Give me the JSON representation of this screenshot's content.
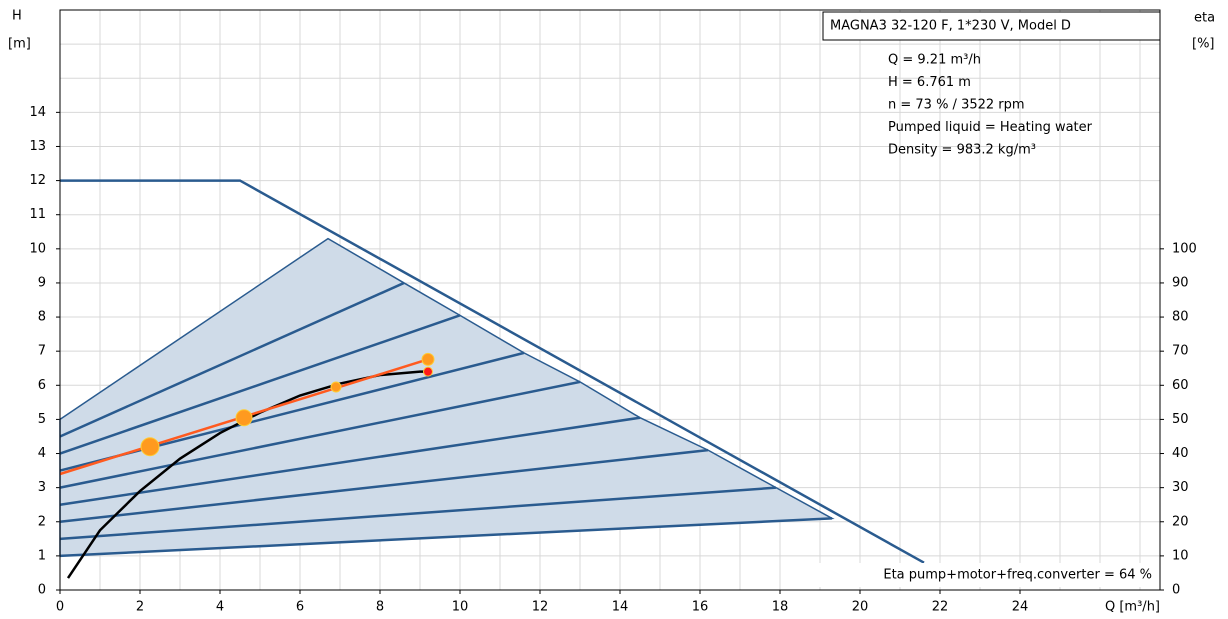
{
  "chart_data": {
    "type": "line",
    "title": "MAGNA3 32-120 F, 1*230 V, Model D",
    "info": [
      "Q = 9.21 m³/h",
      "H = 6.761 m",
      "n = 73 % / 3522 rpm",
      "Pumped liquid = Heating water",
      "Density = 983.2 kg/m³"
    ],
    "footnote": "Eta pump+motor+freq.converter = 64 %",
    "ylabel": "H",
    "yunit": "[m]",
    "y2label": "eta",
    "y2unit": "[%]",
    "xlabel": "Q [m³/h]",
    "xlim": [
      0,
      27.5
    ],
    "xticks": [
      0,
      2,
      4,
      6,
      8,
      10,
      12,
      14,
      16,
      18,
      20,
      22,
      24
    ],
    "xminorticks": [
      1,
      3,
      5,
      7,
      9,
      11,
      13,
      15,
      17,
      19,
      21,
      23,
      25,
      26,
      27
    ],
    "ylim": [
      0,
      17
    ],
    "yticks": [
      0,
      1,
      2,
      3,
      4,
      5,
      6,
      7,
      8,
      9,
      10,
      11,
      12,
      13,
      14
    ],
    "yminorticks": [
      15,
      16
    ],
    "y2lim": [
      0,
      170
    ],
    "y2ticks": [
      0,
      10,
      20,
      30,
      40,
      50,
      60,
      70,
      80,
      90,
      100
    ],
    "grid": true,
    "series": [
      {
        "kind": "area",
        "color": "#2a5b8f",
        "fill": "#cfdbe8",
        "x": [
          0,
          6.7,
          8.6,
          10,
          11.6,
          13,
          14.5,
          16.2,
          17.9,
          19.3,
          0
        ],
        "values": [
          5,
          10.3,
          9.0,
          8.05,
          6.95,
          6.1,
          5.05,
          4.1,
          3.0,
          2.1,
          1
        ]
      },
      {
        "kind": "line",
        "color": "#2a5b8f",
        "x": [
          0,
          4.5,
          21.6
        ],
        "values": [
          12,
          12,
          0.8
        ]
      },
      {
        "kind": "line",
        "color": "#2a5b8f",
        "x": [
          0,
          8.6
        ],
        "values": [
          4.5,
          9.0
        ]
      },
      {
        "kind": "line",
        "color": "#2a5b8f",
        "x": [
          0,
          10
        ],
        "values": [
          4,
          8.05
        ]
      },
      {
        "kind": "line",
        "color": "#2a5b8f",
        "x": [
          0,
          11.6
        ],
        "values": [
          3.5,
          6.95
        ]
      },
      {
        "kind": "line",
        "color": "#2a5b8f",
        "x": [
          0,
          13
        ],
        "values": [
          3,
          6.1
        ]
      },
      {
        "kind": "line",
        "color": "#2a5b8f",
        "x": [
          0,
          14.5
        ],
        "values": [
          2.5,
          5.05
        ]
      },
      {
        "kind": "line",
        "color": "#2a5b8f",
        "x": [
          0,
          16.2
        ],
        "values": [
          2,
          4.1
        ]
      },
      {
        "kind": "line",
        "color": "#2a5b8f",
        "x": [
          0,
          17.9
        ],
        "values": [
          1.5,
          3.0
        ]
      },
      {
        "kind": "line",
        "color": "#2a5b8f",
        "x": [
          0,
          19.3
        ],
        "values": [
          1,
          2.1
        ]
      },
      {
        "kind": "line",
        "color": "#000000",
        "x": [
          0.2,
          1,
          2,
          3,
          4,
          5,
          6,
          7,
          8,
          9,
          9.2
        ],
        "values": [
          0.35,
          1.75,
          2.9,
          3.85,
          4.6,
          5.2,
          5.7,
          6.05,
          6.3,
          6.4,
          6.4
        ]
      },
      {
        "kind": "line",
        "color": "#ff5a1f",
        "x": [
          0,
          9.2
        ],
        "values": [
          3.4,
          6.76
        ]
      },
      {
        "kind": "points",
        "color": "#ff9a1f",
        "x": [
          2.25,
          4.6,
          6.9,
          9.2
        ],
        "values": [
          4.2,
          5.05,
          5.95,
          6.76
        ],
        "sizes": [
          9,
          8,
          5,
          6
        ]
      },
      {
        "kind": "points",
        "color": "#ff1a1a",
        "x": [
          9.2
        ],
        "values": [
          6.4
        ],
        "sizes": [
          4.5
        ]
      }
    ]
  }
}
